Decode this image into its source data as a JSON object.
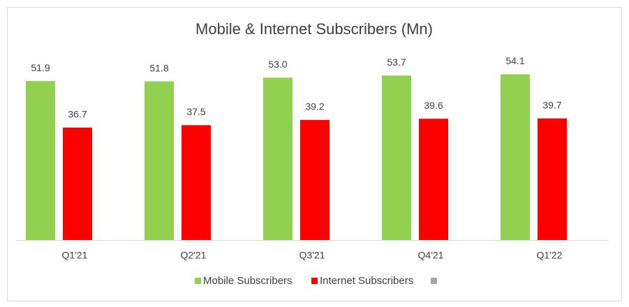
{
  "chart_data": {
    "type": "bar",
    "title": "Mobile & Internet Subscribers (Mn)",
    "categories": [
      "Q1'21",
      "Q2'21",
      "Q3'21",
      "Q4'21",
      "Q1'22"
    ],
    "series": [
      {
        "name": "Mobile Subscribers",
        "color": "#92d050",
        "values": [
          51.9,
          51.8,
          53.0,
          53.7,
          54.1
        ],
        "value_labels": [
          "51.9",
          "51.8",
          "53.0",
          "53.7",
          "54.1"
        ]
      },
      {
        "name": "Internet Subscribers",
        "color": "#ff0000",
        "values": [
          36.7,
          37.5,
          39.2,
          39.6,
          39.7
        ],
        "value_labels": [
          "36.7",
          "37.5",
          "39.2",
          "39.6",
          "39.7"
        ]
      }
    ],
    "ylim": [
      0,
      60
    ]
  }
}
